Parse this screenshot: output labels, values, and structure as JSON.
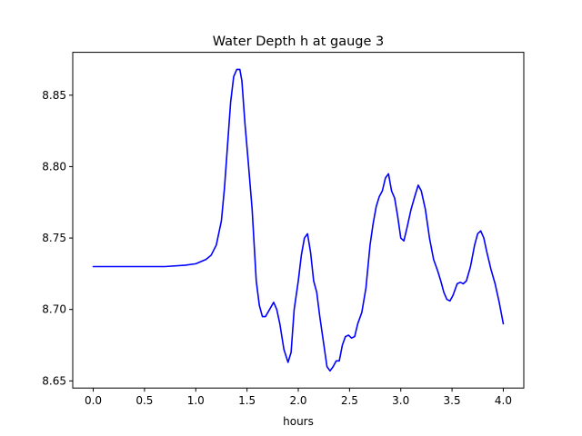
{
  "chart_data": {
    "type": "line",
    "title": "Water Depth h at gauge 3",
    "xlabel": "hours",
    "ylabel": "",
    "xlim": [
      -0.2,
      4.2
    ],
    "ylim": [
      8.645,
      8.88
    ],
    "x_ticks": [
      0.0,
      0.5,
      1.0,
      1.5,
      2.0,
      2.5,
      3.0,
      3.5,
      4.0
    ],
    "x_tick_labels": [
      "0.0",
      "0.5",
      "1.0",
      "1.5",
      "2.0",
      "2.5",
      "3.0",
      "3.5",
      "4.0"
    ],
    "y_ticks": [
      8.65,
      8.7,
      8.75,
      8.8,
      8.85
    ],
    "y_tick_labels": [
      "8.65",
      "8.70",
      "8.75",
      "8.80",
      "8.85"
    ],
    "grid": false,
    "series": [
      {
        "color": "#0000ff",
        "x": [
          0.0,
          0.3,
          0.7,
          0.9,
          1.0,
          1.1,
          1.15,
          1.2,
          1.25,
          1.28,
          1.31,
          1.34,
          1.37,
          1.4,
          1.43,
          1.45,
          1.48,
          1.51,
          1.55,
          1.59,
          1.62,
          1.65,
          1.68,
          1.72,
          1.76,
          1.79,
          1.82,
          1.86,
          1.9,
          1.93,
          1.96,
          2.0,
          2.03,
          2.06,
          2.09,
          2.12,
          2.15,
          2.18,
          2.21,
          2.25,
          2.28,
          2.31,
          2.34,
          2.37,
          2.4,
          2.43,
          2.46,
          2.49,
          2.52,
          2.55,
          2.58,
          2.62,
          2.66,
          2.7,
          2.73,
          2.76,
          2.79,
          2.82,
          2.85,
          2.88,
          2.91,
          2.94,
          2.97,
          3.0,
          3.03,
          3.06,
          3.1,
          3.14,
          3.17,
          3.2,
          3.24,
          3.28,
          3.32,
          3.36,
          3.39,
          3.42,
          3.45,
          3.48,
          3.51,
          3.55,
          3.58,
          3.61,
          3.64,
          3.68,
          3.72,
          3.75,
          3.78,
          3.81,
          3.84,
          3.88,
          3.92,
          3.96,
          4.0
        ],
        "y": [
          8.73,
          8.73,
          8.73,
          8.731,
          8.732,
          8.735,
          8.738,
          8.745,
          8.762,
          8.785,
          8.815,
          8.845,
          8.863,
          8.868,
          8.868,
          8.86,
          8.83,
          8.805,
          8.77,
          8.72,
          8.703,
          8.695,
          8.695,
          8.7,
          8.705,
          8.7,
          8.69,
          8.672,
          8.663,
          8.67,
          8.7,
          8.72,
          8.738,
          8.75,
          8.753,
          8.74,
          8.72,
          8.712,
          8.695,
          8.675,
          8.66,
          8.657,
          8.66,
          8.664,
          8.664,
          8.675,
          8.681,
          8.682,
          8.68,
          8.681,
          8.69,
          8.698,
          8.715,
          8.745,
          8.76,
          8.772,
          8.779,
          8.783,
          8.792,
          8.795,
          8.783,
          8.778,
          8.765,
          8.75,
          8.748,
          8.757,
          8.77,
          8.78,
          8.787,
          8.783,
          8.77,
          8.75,
          8.735,
          8.727,
          8.72,
          8.712,
          8.707,
          8.706,
          8.71,
          8.718,
          8.719,
          8.718,
          8.72,
          8.73,
          8.745,
          8.753,
          8.755,
          8.75,
          8.74,
          8.728,
          8.718,
          8.705,
          8.69
        ]
      }
    ]
  }
}
